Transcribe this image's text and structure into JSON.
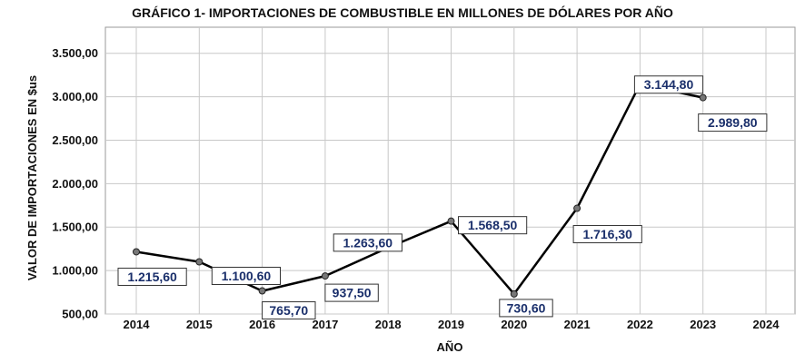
{
  "chart_data": {
    "type": "line",
    "title": "GRÁFICO 1- IMPORTACIONES DE COMBUSTIBLE EN MILLONES DE DÓLARES POR AÑO",
    "xlabel": "AÑO",
    "ylabel": "VALOR DE IMPORTACIONES EN $us",
    "categories": [
      "2014",
      "2015",
      "2016",
      "2017",
      "2018",
      "2019",
      "2020",
      "2021",
      "2022",
      "2023",
      "2024"
    ],
    "series": [
      {
        "values": [
          1215.6,
          1100.6,
          765.7,
          937.5,
          1263.6,
          1568.5,
          730.6,
          1716.3,
          3144.8,
          2989.8,
          null
        ],
        "labels": [
          "1.215,60",
          "1.100,60",
          "765,70",
          "937,50",
          "1.263,60",
          "1.568,50",
          "730,60",
          "1.716,30",
          "3.144,80",
          "2.989,80",
          ""
        ],
        "color": "#000000"
      }
    ],
    "yticks": [
      500,
      1000,
      1500,
      2000,
      2500,
      3000,
      3500
    ],
    "ytick_labels": [
      "500,00",
      "1.000,00",
      "1.500,00",
      "2.000,00",
      "2.500,00",
      "3.000,00",
      "3.500,00"
    ],
    "ylim": [
      500,
      3800
    ],
    "grid": true,
    "label_color": "#1a2f6b"
  }
}
